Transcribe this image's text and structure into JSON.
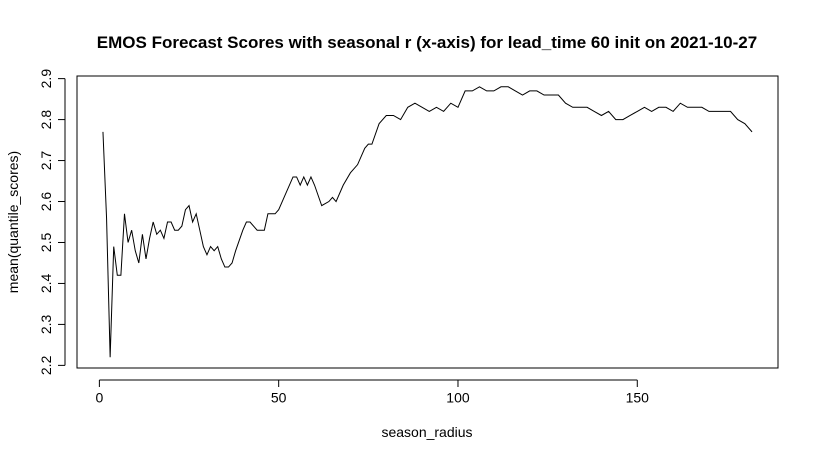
{
  "chart_data": {
    "type": "line",
    "title": "EMOS Forecast Scores with seasonal r (x-axis) for lead_time 60 init on 2021-10-27",
    "x_label": "season_radius",
    "y_label": "mean(quantile_scores)",
    "color": "#000000",
    "x": [
      1,
      2,
      3,
      4,
      5,
      6,
      7,
      8,
      9,
      10,
      11,
      12,
      13,
      14,
      15,
      16,
      17,
      18,
      19,
      20,
      21,
      22,
      23,
      24,
      25,
      26,
      27,
      28,
      29,
      30,
      31,
      32,
      33,
      34,
      35,
      36,
      37,
      38,
      40,
      41,
      42,
      44,
      46,
      47,
      49,
      50,
      52,
      54,
      55,
      56,
      57,
      58,
      59,
      60,
      62,
      64,
      65,
      66,
      68,
      70,
      72,
      74,
      75,
      76,
      78,
      80,
      82,
      84,
      86,
      88,
      90,
      92,
      94,
      96,
      98,
      100,
      102,
      104,
      106,
      108,
      110,
      112,
      114,
      116,
      118,
      120,
      122,
      124,
      126,
      128,
      130,
      132,
      134,
      136,
      138,
      140,
      142,
      144,
      146,
      148,
      150,
      152,
      154,
      156,
      158,
      160,
      162,
      164,
      166,
      168,
      170,
      172,
      174,
      176,
      178,
      180,
      182
    ],
    "values": [
      2.77,
      2.56,
      2.22,
      2.49,
      2.42,
      2.42,
      2.57,
      2.5,
      2.53,
      2.48,
      2.45,
      2.52,
      2.46,
      2.51,
      2.55,
      2.52,
      2.53,
      2.51,
      2.55,
      2.55,
      2.53,
      2.53,
      2.54,
      2.58,
      2.59,
      2.55,
      2.57,
      2.53,
      2.49,
      2.47,
      2.49,
      2.48,
      2.49,
      2.46,
      2.44,
      2.44,
      2.45,
      2.48,
      2.53,
      2.55,
      2.55,
      2.53,
      2.53,
      2.57,
      2.57,
      2.58,
      2.62,
      2.66,
      2.66,
      2.64,
      2.66,
      2.64,
      2.66,
      2.64,
      2.59,
      2.6,
      2.61,
      2.6,
      2.64,
      2.67,
      2.69,
      2.73,
      2.74,
      2.74,
      2.79,
      2.81,
      2.81,
      2.8,
      2.83,
      2.84,
      2.83,
      2.82,
      2.83,
      2.82,
      2.84,
      2.83,
      2.87,
      2.87,
      2.88,
      2.87,
      2.87,
      2.88,
      2.88,
      2.87,
      2.86,
      2.87,
      2.87,
      2.86,
      2.86,
      2.86,
      2.84,
      2.83,
      2.83,
      2.83,
      2.82,
      2.81,
      2.82,
      2.8,
      2.8,
      2.81,
      2.82,
      2.83,
      2.82,
      2.83,
      2.83,
      2.82,
      2.84,
      2.83,
      2.83,
      2.83,
      2.82,
      2.82,
      2.82,
      2.82,
      2.8,
      2.79,
      2.77
    ],
    "xlim": [
      -6.24,
      189.24
    ],
    "ylim": [
      2.1936,
      2.9064
    ],
    "xticks": [
      0,
      50,
      100,
      150
    ],
    "yticks": [
      2.2,
      2.3,
      2.4,
      2.5,
      2.6,
      2.7,
      2.8,
      2.9
    ]
  }
}
